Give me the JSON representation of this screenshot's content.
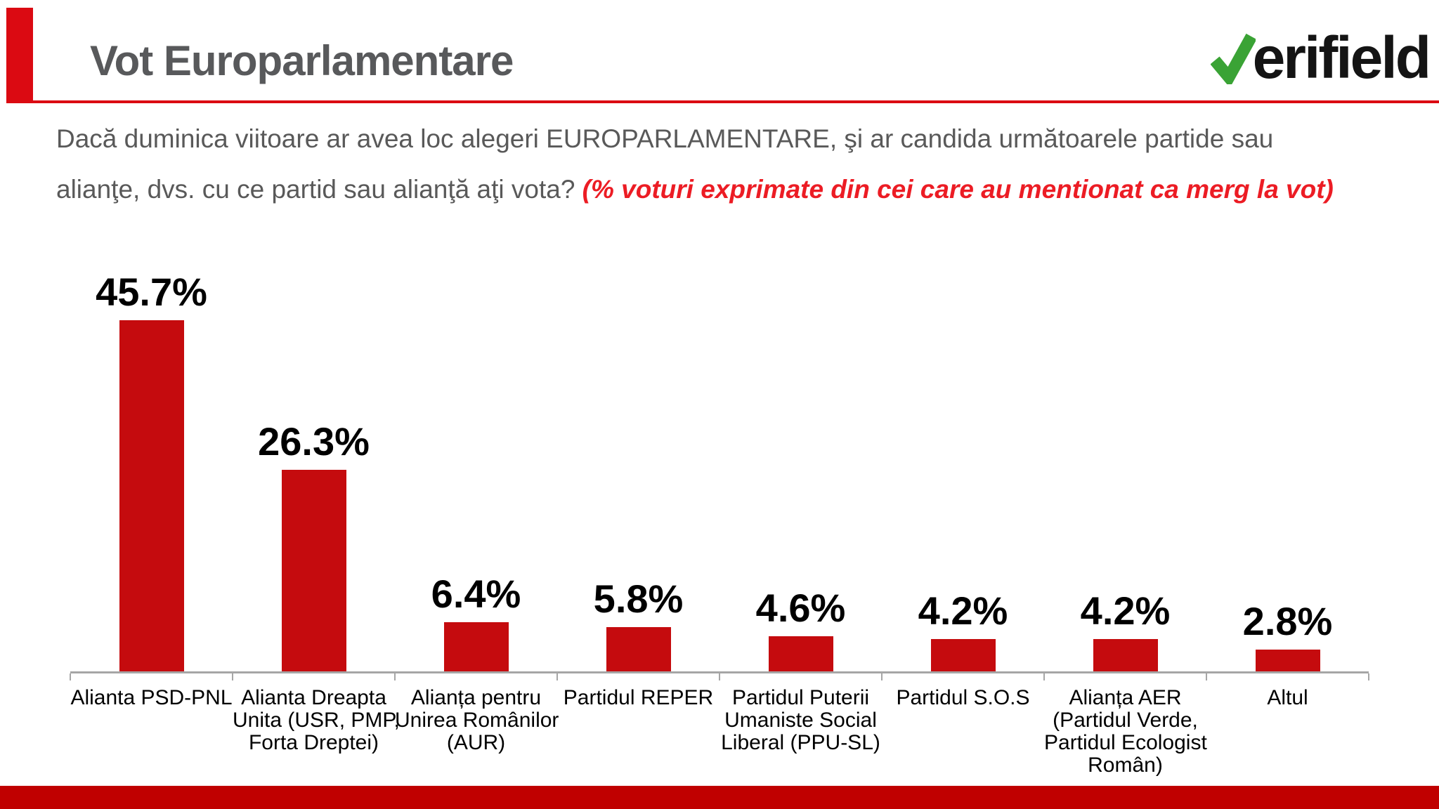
{
  "header": {
    "title": "Vot Europarlamentare",
    "logo_wordmark": "erifield",
    "logo_name": "Verifield"
  },
  "question": {
    "main": "Dacă duminica viitoare ar avea loc alegeri EUROPARLAMENTARE, şi ar candida următoarele partide sau alianţe, dvs. cu ce partid sau alianţă aţi vota? ",
    "note": "(% voturi exprimate din cei care au mentionat ca merg la vot)"
  },
  "chart_data": {
    "type": "bar",
    "title": "",
    "xlabel": "",
    "ylabel": "",
    "ylim": [
      0,
      50
    ],
    "grid": false,
    "legend": false,
    "categories": [
      "Alianta PSD-PNL",
      "Alianta Dreapta Unita (USR, PMP, Forta Dreptei)",
      "Alianța pentru Unirea Românilor (AUR)",
      "Partidul REPER",
      "Partidul Puterii Umaniste Social Liberal (PPU-SL)",
      "Partidul S.O.S",
      "Alianța AER (Partidul Verde, Partidul Ecologist Român)",
      "Altul"
    ],
    "category_lines": [
      [
        "Alianta PSD-PNL"
      ],
      [
        "Alianta Dreapta",
        "Unita (USR, PMP,",
        "Forta Dreptei)"
      ],
      [
        "Alianța pentru",
        "Unirea Românilor",
        "(AUR)"
      ],
      [
        "Partidul REPER"
      ],
      [
        "Partidul Puterii",
        "Umaniste Social",
        "Liberal (PPU-SL)"
      ],
      [
        "Partidul S.O.S"
      ],
      [
        "Alianța AER",
        "(Partidul Verde,",
        "Partidul Ecologist",
        "Român)"
      ],
      [
        "Altul"
      ]
    ],
    "values": [
      45.7,
      26.3,
      6.4,
      5.8,
      4.6,
      4.2,
      4.2,
      2.8
    ],
    "value_labels": [
      "45.7%",
      "26.3%",
      "6.4%",
      "5.8%",
      "4.6%",
      "4.2%",
      "4.2%",
      "2.8%"
    ]
  },
  "colors": {
    "bar_red": "#C50B0E",
    "accent_red": "#DB0A12",
    "bottom_band_red": "#C00000",
    "note_red": "#EC1C24",
    "logo_green": "#3AA335",
    "title_gray": "#58595B",
    "question_gray": "#595959",
    "axis_gray": "#A6A6A6"
  }
}
